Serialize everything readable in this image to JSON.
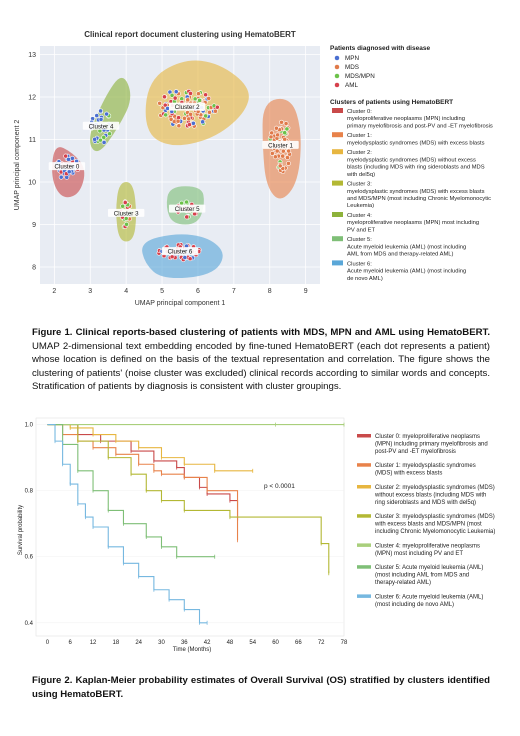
{
  "figure1": {
    "chart_data": {
      "type": "scatter",
      "title": "Clinical report document clustering using HematoBERT",
      "xlabel": "UMAP principal component 1",
      "ylabel": "UMAP principal component 2",
      "xlim": [
        1.6,
        9.4
      ],
      "ylim": [
        7.6,
        13.2
      ],
      "xticks": [
        2,
        3,
        4,
        5,
        6,
        7,
        8,
        9
      ],
      "yticks": [
        8,
        9,
        10,
        11,
        12,
        13
      ],
      "diagnosis_legend_title": "Patients diagnosed with disease",
      "diagnoses": [
        {
          "name": "MPN",
          "color": "#4a6fd1"
        },
        {
          "name": "MDS",
          "color": "#e07a4a"
        },
        {
          "name": "MDS/MPN",
          "color": "#6cc24a"
        },
        {
          "name": "AML",
          "color": "#d6404c"
        }
      ],
      "cluster_legend_title": "Clusters of patients using HematoBERT",
      "clusters": [
        {
          "label": "Cluster 0",
          "legend": [
            "Cluster 0:",
            "myeloproliferative neoplasms (MPN) including",
            "primary myelofibrosis and post-PV and -ET myelofibrosis"
          ],
          "color": "#c94a4a",
          "center": [
            2.35,
            10.35
          ]
        },
        {
          "label": "Cluster 1",
          "legend": [
            "Cluster 1:",
            "myelodysplastic syndromes (MDS) with excess blasts"
          ],
          "color": "#e8824a",
          "center": [
            8.3,
            10.85
          ]
        },
        {
          "label": "Cluster 2",
          "legend": [
            "Cluster 2:",
            "myelodysplastic syndromes (MDS) without excess",
            "blasts (including MDS with ring sideroblasts and MDS",
            "with del5q)"
          ],
          "color": "#e7b640",
          "center": [
            5.7,
            11.75
          ]
        },
        {
          "label": "Cluster 3",
          "legend": [
            "Cluster 3:",
            "myelodysplastic syndromes (MDS) with excess blasts",
            "and MDS/MPN (most including Chronic Myelomonocytic",
            "Leukemia)"
          ],
          "color": "#b3b834",
          "center": [
            4.0,
            9.25
          ]
        },
        {
          "label": "Cluster 4",
          "legend": [
            "Cluster 4:",
            "myeloproliferative neoplasms (MPN) most including",
            "PV and ET"
          ],
          "color": "#8db23a",
          "center": [
            3.3,
            11.3
          ]
        },
        {
          "label": "Cluster 5",
          "legend": [
            "Cluster 5:",
            "Acute myeloid leukemia (AML) (most including",
            "AML from MDS and therapy-related AML)"
          ],
          "color": "#7fbf77",
          "center": [
            5.7,
            9.35
          ]
        },
        {
          "label": "Cluster 6",
          "legend": [
            "Cluster 6:",
            "Acute myeloid leukemia (AML) (most including",
            "de novo AML)"
          ],
          "color": "#5aa7d8",
          "center": [
            5.5,
            8.35
          ]
        }
      ]
    },
    "caption_bold": "Figure 1. Clinical reports-based clustering of patients with MDS, MPN and AML using HematoBERT.",
    "caption_rest": " UMAP 2-dimensional text embedding encoded by fine-tuned HematoBERT (each dot represents a patient) whose location is defined on the basis of the textual representation and correlation. The figure shows the clustering of patients' (noise cluster was excluded) clinical records according to similar words and concepts. Stratification of patients by diagnosis is consistent with cluster groupings."
  },
  "figure2": {
    "chart_data": {
      "type": "line",
      "xlabel": "Time (Months)",
      "ylabel": "Survival probability",
      "xlim": [
        -3,
        78
      ],
      "ylim": [
        0.36,
        1.02
      ],
      "xticks": [
        0,
        6,
        12,
        18,
        24,
        30,
        36,
        42,
        48,
        54,
        60,
        66,
        72,
        78
      ],
      "yticks": [
        0.4,
        0.6,
        0.8,
        1.0
      ],
      "annotation": "p < 0.0001",
      "series": [
        {
          "name": "Cluster 0: myeloproliferative neoplasms (MPN) including primary myelofibrosis and post-PV and -ET myelofibrosis",
          "legend": [
            "Cluster 0: myeloproliferative neoplasms",
            "(MPN) including primary myelofibrosis and",
            "post-PV and -ET myelofibrosis"
          ],
          "color": "#c94a4a",
          "x": [
            0,
            8,
            14,
            22,
            28,
            34,
            36,
            40,
            42,
            48,
            50
          ],
          "y": [
            1.0,
            0.97,
            0.95,
            0.92,
            0.89,
            0.87,
            0.84,
            0.81,
            0.79,
            0.77,
            0.71
          ]
        },
        {
          "name": "Cluster 1: myelodysplastic syndromes (MDS) with excess blasts",
          "legend": [
            "Cluster 1: myelodysplastic syndromes",
            "(MDS) with excess blasts"
          ],
          "color": "#e8824a",
          "x": [
            0,
            4,
            8,
            12,
            18,
            24,
            28,
            30,
            36,
            42,
            50
          ],
          "y": [
            1.0,
            0.97,
            0.95,
            0.93,
            0.91,
            0.88,
            0.86,
            0.85,
            0.84,
            0.8,
            0.65
          ]
        },
        {
          "name": "Cluster 2: myelodysplastic syndromes (MDS) without excess blasts (including MDS with ring sideroblasts and MDS with del5q)",
          "legend": [
            "Cluster 2: myelodysplastic syndromes (MDS)",
            "without excess blasts (including MDS with",
            "ring sideroblasts and MDS with del5q)"
          ],
          "color": "#e7b640",
          "x": [
            0,
            6,
            12,
            18,
            24,
            30,
            36,
            44,
            54
          ],
          "y": [
            1.0,
            0.99,
            0.97,
            0.95,
            0.93,
            0.9,
            0.88,
            0.86,
            0.86
          ]
        },
        {
          "name": "Cluster 3: myelodysplastic syndromes (MDS) with excess blasts and MDS/MPN (most including Chronic Myelomonocytic Leukemia)",
          "legend": [
            "Cluster 3: myelodysplastic syndromes (MDS)",
            "with excess blasts and MDS/MPN (most",
            "including Chronic Myelomonocytic Leukemia)"
          ],
          "color": "#b3b834",
          "x": [
            0,
            8,
            16,
            22,
            26,
            30,
            36,
            48,
            72,
            74
          ],
          "y": [
            1.0,
            0.95,
            0.9,
            0.85,
            0.8,
            0.77,
            0.74,
            0.72,
            0.64,
            0.55
          ]
        },
        {
          "name": "Cluster 4: myeloproliferative neoplasms (MPN) most including PV and ET",
          "legend": [
            "Cluster 4: myeloproliferative neoplasms",
            "(MPN) most including PV and ET"
          ],
          "color": "#a9cf7c",
          "x": [
            0,
            60,
            78
          ],
          "y": [
            1.0,
            1.0,
            1.0
          ]
        },
        {
          "name": "Cluster 5: Acute myeloid leukemia (AML) (most including AML from MDS and therapy-related AML)",
          "legend": [
            "Cluster 5: Acute myeloid leukemia (AML)",
            "(most including AML from MDS and",
            "therapy-related AML)"
          ],
          "color": "#7fbf77",
          "x": [
            0,
            4,
            8,
            12,
            16,
            20,
            26,
            30,
            34,
            44
          ],
          "y": [
            1.0,
            0.94,
            0.86,
            0.8,
            0.74,
            0.7,
            0.66,
            0.63,
            0.6,
            0.6
          ]
        },
        {
          "name": "Cluster 6: Acute myeloid leukemia (AML) (most including de novo AML)",
          "legend": [
            "Cluster 6: Acute myeloid leukemia (AML)",
            "(most including de novo AML)"
          ],
          "color": "#76b8e0",
          "x": [
            0,
            2,
            4,
            6,
            8,
            10,
            12,
            16,
            20,
            24,
            28,
            32,
            36,
            40,
            42
          ],
          "y": [
            1.0,
            0.95,
            0.88,
            0.82,
            0.76,
            0.72,
            0.69,
            0.63,
            0.58,
            0.54,
            0.5,
            0.47,
            0.44,
            0.4,
            0.4
          ]
        }
      ]
    },
    "caption": "Figure 2. Kaplan-Meier probability estimates of Overall Survival (OS) stratified by clusters identified using HematoBERT."
  }
}
